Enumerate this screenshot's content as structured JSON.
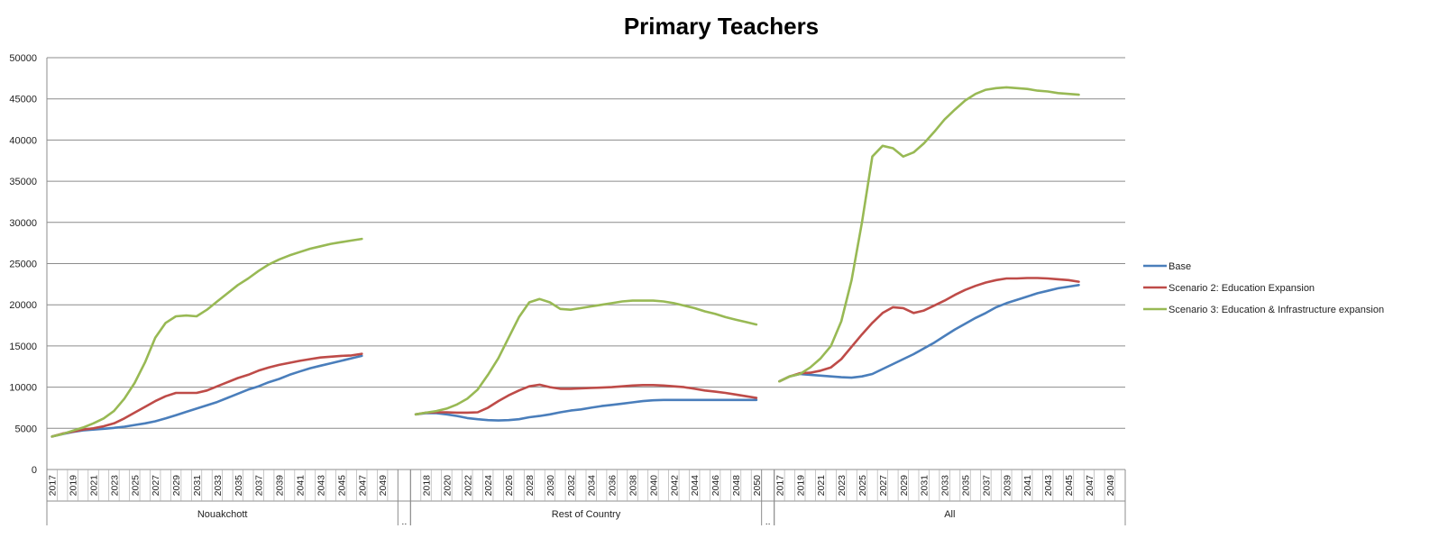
{
  "colors": {
    "base": "#4a7ebb",
    "scenario2": "#be4b48",
    "scenario3": "#98b954",
    "grid": "#8c8c8c",
    "axis": "#8c8c8c"
  },
  "chart_data": {
    "type": "line",
    "title": "Primary Teachers",
    "ylim": [
      0,
      50000
    ],
    "y_ticks": [
      0,
      5000,
      10000,
      15000,
      20000,
      25000,
      30000,
      35000,
      40000,
      45000,
      50000
    ],
    "grid": true,
    "legend_position": "right",
    "group_separator_label": "..",
    "groups": [
      {
        "name": "Nouakchott",
        "x_start": 2017,
        "x_end": 2050,
        "tick_labels": [
          "2017",
          "2019",
          "2021",
          "2023",
          "2025",
          "2027",
          "2029",
          "2031",
          "2033",
          "2035",
          "2037",
          "2039",
          "2041",
          "2043",
          "2045",
          "2047",
          "2049"
        ],
        "series": [
          {
            "name": "Base",
            "values": [
              4000,
              4300,
              4550,
              4750,
              4850,
              4950,
              5050,
              5200,
              5400,
              5600,
              5850,
              6200,
              6600,
              7000,
              7400,
              7800,
              8200,
              8700,
              9200,
              9700,
              10100,
              10600,
              11000,
              11500,
              11900,
              12300,
              12600,
              12900,
              13200,
              13500,
              13800
            ]
          },
          {
            "name": "Scenario 2: Education Expansion",
            "values": [
              4000,
              4350,
              4600,
              4850,
              5000,
              5250,
              5600,
              6200,
              6900,
              7600,
              8300,
              8900,
              9300,
              9300,
              9300,
              9600,
              10100,
              10600,
              11100,
              11500,
              12000,
              12400,
              12700,
              12950,
              13200,
              13400,
              13600,
              13700,
              13800,
              13850,
              14050
            ]
          },
          {
            "name": "Scenario 3: Education & Infrastructure expansion",
            "values": [
              4000,
              4300,
              4700,
              5100,
              5600,
              6200,
              7100,
              8600,
              10500,
              13000,
              16000,
              17800,
              18600,
              18700,
              18600,
              19400,
              20400,
              21400,
              22400,
              23200,
              24100,
              24900,
              25500,
              26000,
              26400,
              26800,
              27100,
              27400,
              27600,
              27800,
              28000
            ]
          }
        ]
      },
      {
        "name": "Rest of Country",
        "x_start": 2017,
        "x_end": 2050,
        "tick_labels": [
          "2018",
          "2020",
          "2022",
          "2024",
          "2026",
          "2028",
          "2030",
          "2032",
          "2034",
          "2036",
          "2038",
          "2040",
          "2042",
          "2044",
          "2046",
          "2048",
          "2050"
        ],
        "series": [
          {
            "name": "Base",
            "values": [
              6700,
              6850,
              6850,
              6700,
              6500,
              6250,
              6100,
              6000,
              5950,
              6000,
              6100,
              6350,
              6500,
              6700,
              6950,
              7150,
              7300,
              7500,
              7700,
              7850,
              8000,
              8150,
              8300,
              8400,
              8450,
              8450,
              8450,
              8450,
              8450,
              8450,
              8450,
              8450,
              8450,
              8450
            ]
          },
          {
            "name": "Scenario 2: Education Expansion",
            "values": [
              6700,
              6900,
              6950,
              6950,
              6900,
              6900,
              6950,
              7500,
              8300,
              9000,
              9600,
              10100,
              10300,
              10000,
              9800,
              9800,
              9850,
              9900,
              9950,
              10000,
              10100,
              10200,
              10250,
              10250,
              10200,
              10100,
              10000,
              9800,
              9600,
              9450,
              9300,
              9100,
              8900,
              8700
            ]
          },
          {
            "name": "Scenario 3: Education & Infrastructure expansion",
            "values": [
              6700,
              6900,
              7100,
              7400,
              7900,
              8600,
              9700,
              11500,
              13500,
              16000,
              18500,
              20300,
              20700,
              20300,
              19500,
              19400,
              19600,
              19800,
              20000,
              20200,
              20400,
              20500,
              20500,
              20500,
              20400,
              20200,
              19900,
              19600,
              19200,
              18900,
              18500,
              18200,
              17900,
              17600
            ]
          }
        ]
      },
      {
        "name": "All",
        "x_start": 2017,
        "x_end": 2050,
        "tick_labels": [
          "2017",
          "2019",
          "2021",
          "2023",
          "2025",
          "2027",
          "2029",
          "2031",
          "2033",
          "2035",
          "2037",
          "2039",
          "2041",
          "2043",
          "2045",
          "2047",
          "2049"
        ],
        "series": [
          {
            "name": "Base",
            "values": [
              10700,
              11300,
              11600,
              11500,
              11400,
              11300,
              11200,
              11150,
              11300,
              11600,
              12200,
              12800,
              13400,
              14000,
              14700,
              15400,
              16200,
              17000,
              17700,
              18400,
              19000,
              19700,
              20200,
              20600,
              21000,
              21400,
              21700,
              22000,
              22200,
              22400
            ]
          },
          {
            "name": "Scenario 2: Education Expansion",
            "values": [
              10700,
              11300,
              11700,
              11750,
              12000,
              12400,
              13400,
              14900,
              16400,
              17800,
              19000,
              19700,
              19600,
              19000,
              19300,
              19900,
              20500,
              21200,
              21800,
              22300,
              22700,
              23000,
              23200,
              23200,
              23250,
              23250,
              23200,
              23100,
              23000,
              22800
            ]
          },
          {
            "name": "Scenario 3: Education & Infrastructure expansion",
            "values": [
              10700,
              11300,
              11600,
              12400,
              13500,
              15000,
              18000,
              23000,
              30000,
              38000,
              39300,
              39000,
              38000,
              38500,
              39600,
              41000,
              42500,
              43700,
              44800,
              45600,
              46100,
              46300,
              46400,
              46300,
              46200,
              46000,
              45900,
              45700,
              45600,
              45500
            ]
          }
        ]
      }
    ],
    "legend": [
      "Base",
      "Scenario 2: Education Expansion",
      "Scenario 3: Education & Infrastructure expansion"
    ]
  }
}
